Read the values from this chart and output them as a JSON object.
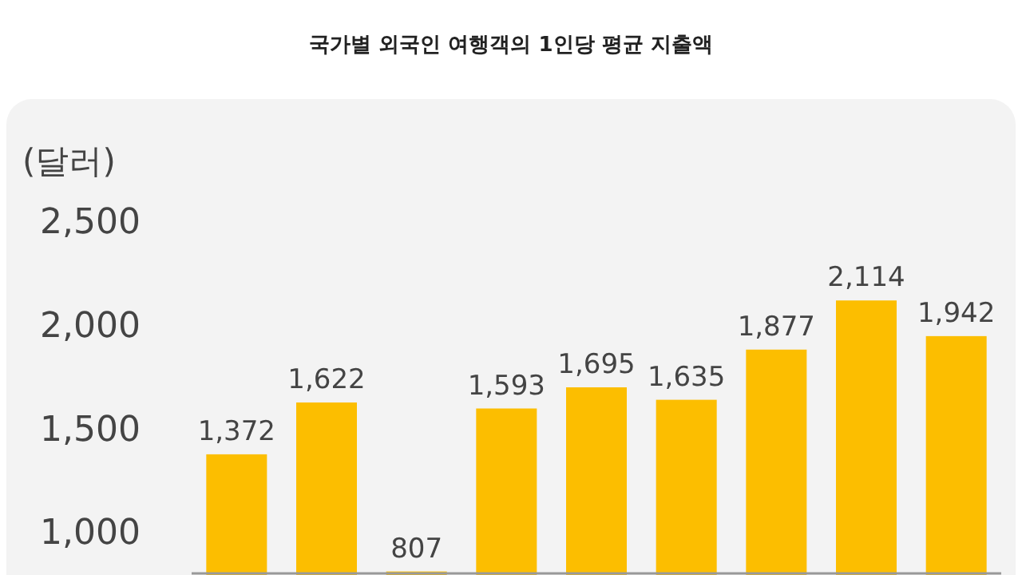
{
  "chart_data": {
    "type": "bar",
    "title": "국가별 외국인 여행객의 1인당 평균 지출액",
    "ylabel": "(달러)",
    "categories": [
      null,
      null,
      null,
      null,
      null,
      null,
      null,
      null,
      null
    ],
    "values": [
      1372,
      1622,
      807,
      1593,
      1695,
      1635,
      1877,
      2114,
      1942
    ],
    "color": "#fcbe00",
    "value_labels": [
      "1,372",
      "1,622",
      "807",
      "1,593",
      "1,695",
      "1,635",
      "1,877",
      "2,114",
      "1,942"
    ],
    "ylim": [
      790,
      2500
    ],
    "yticks": [
      {
        "value": 1000,
        "label": "1,000"
      },
      {
        "value": 1500,
        "label": "1,500"
      },
      {
        "value": 2000,
        "label": "2,000"
      },
      {
        "value": 2500,
        "label": "2,500"
      }
    ]
  }
}
